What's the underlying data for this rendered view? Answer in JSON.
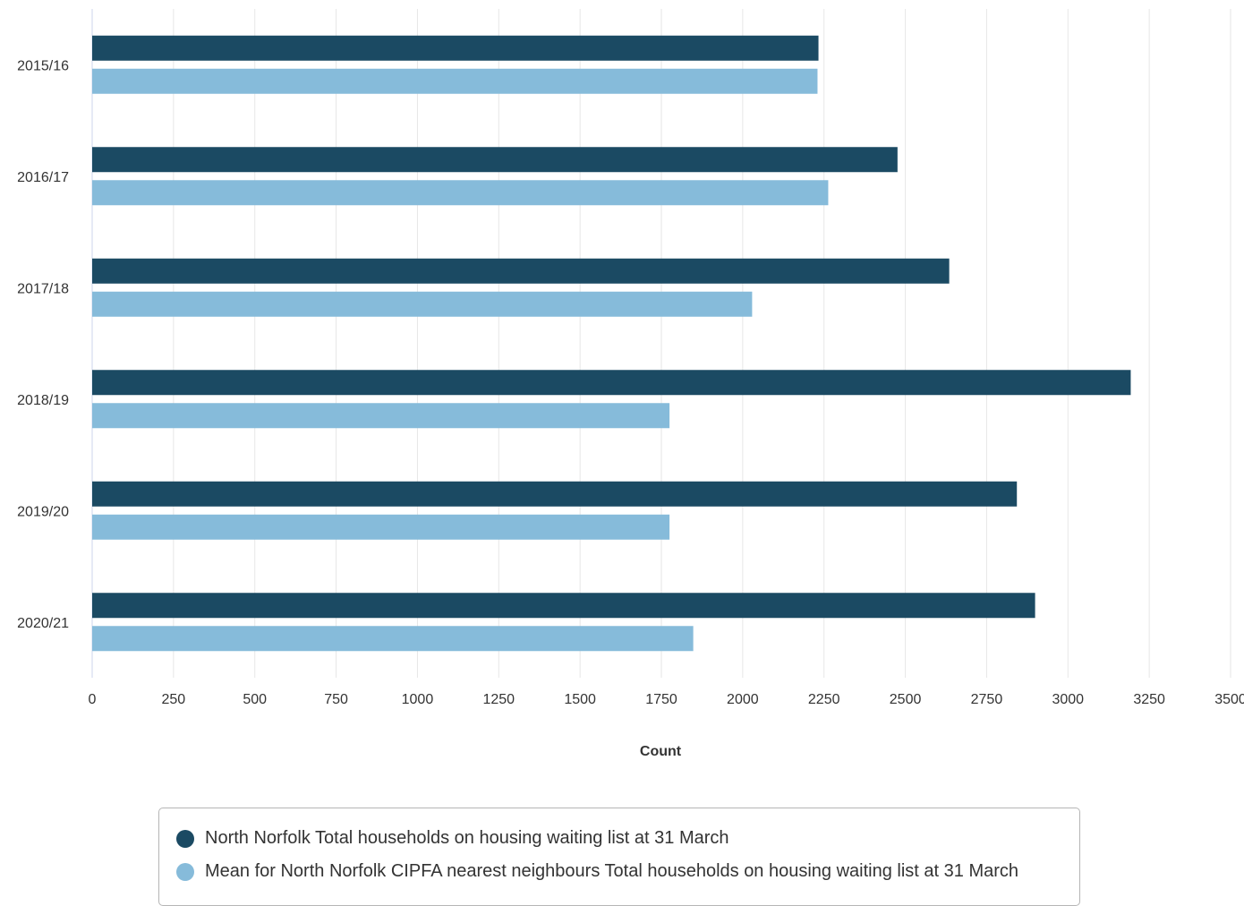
{
  "chart_data": {
    "type": "bar",
    "orientation": "horizontal",
    "title": "",
    "xlabel": "Count",
    "ylabel": "",
    "categories": [
      "2015/16",
      "2016/17",
      "2017/18",
      "2018/19",
      "2019/20",
      "2020/21"
    ],
    "series": [
      {
        "name": "North Norfolk Total households on housing waiting list at 31 March",
        "color": "#1b4a63",
        "values": [
          2233,
          2476,
          2635,
          3193,
          2843,
          2899
        ]
      },
      {
        "name": "Mean for North Norfolk CIPFA nearest neighbours Total households on housing waiting list at 31 March",
        "color": "#86bbda",
        "values": [
          2230,
          2263,
          2029,
          1775,
          1775,
          1848
        ]
      }
    ],
    "xlim": [
      0,
      3500
    ],
    "xticks": [
      "0",
      "250",
      "500",
      "750",
      "1000",
      "1250",
      "1500",
      "1750",
      "2000",
      "2250",
      "2500",
      "2750",
      "3000",
      "3250",
      "3500"
    ],
    "grid": true,
    "legend_position": "bottom"
  }
}
